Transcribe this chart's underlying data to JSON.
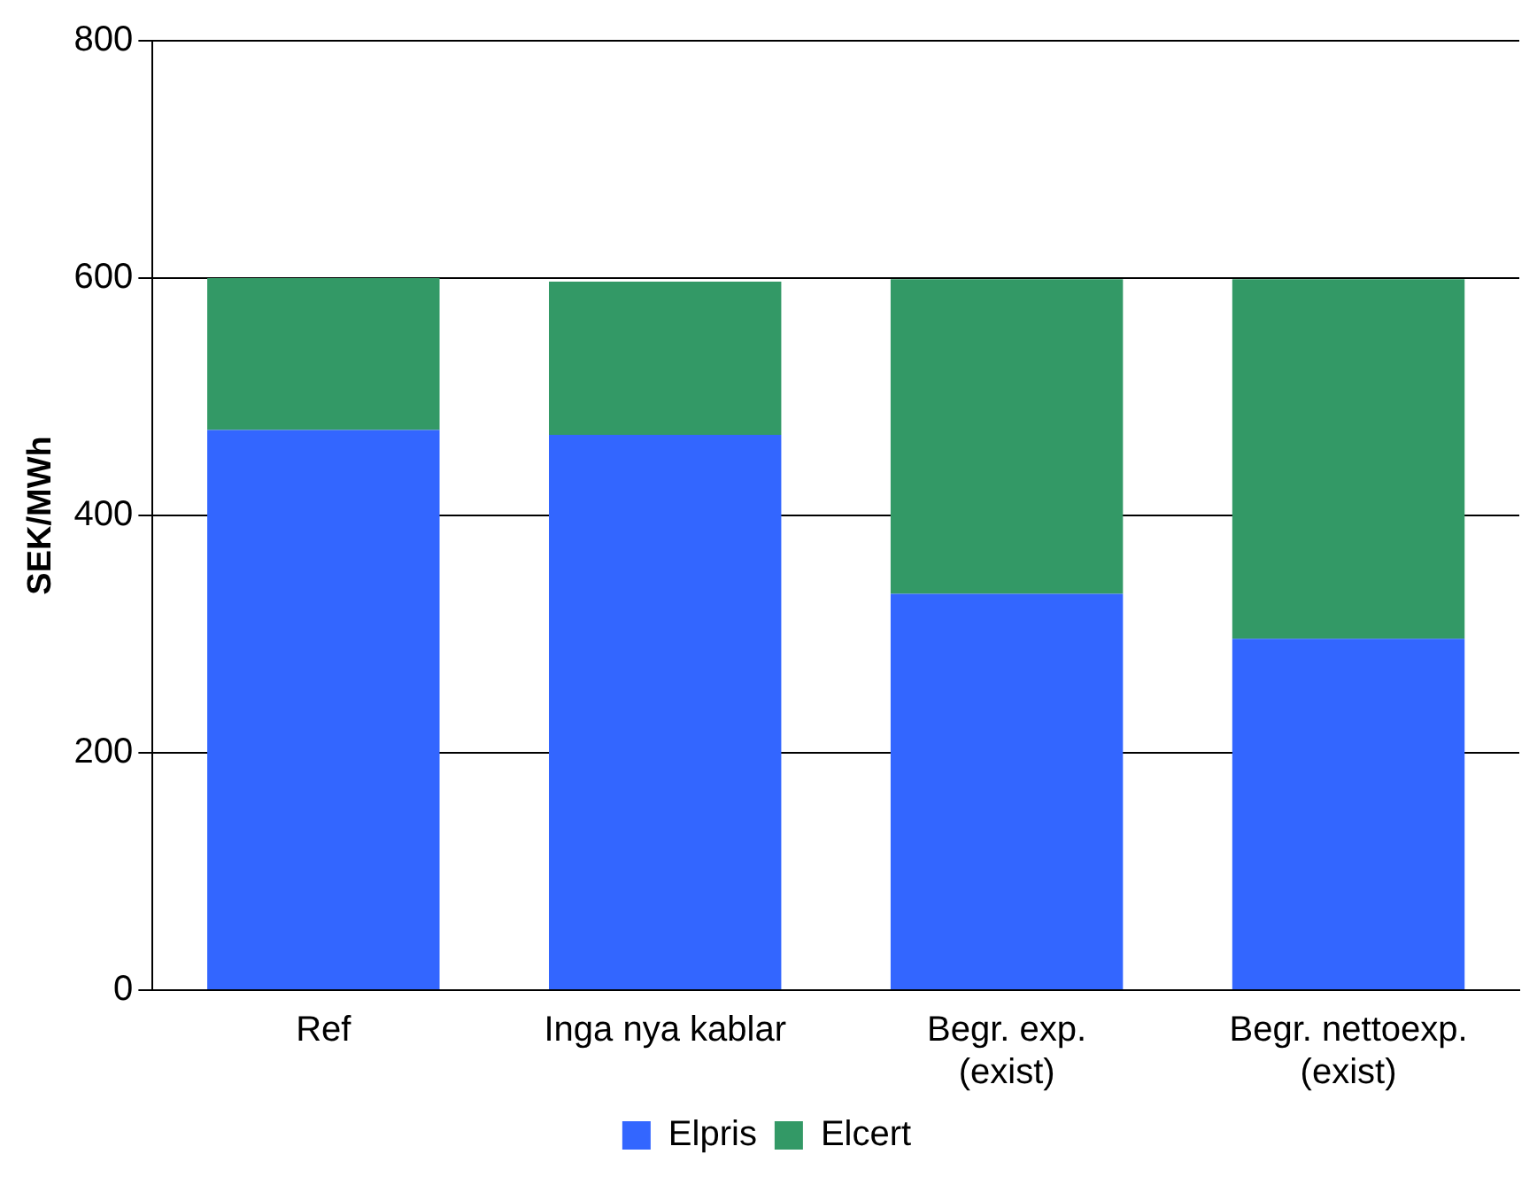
{
  "chart_data": {
    "type": "bar",
    "stacked": true,
    "ylabel": "SEK/MWh",
    "categories": [
      "Ref",
      "Inga nya kablar",
      "Begr. exp. (exist)",
      "Begr. nettoexp. (exist)"
    ],
    "series": [
      {
        "name": "Elpris",
        "color": "#3366ff",
        "values": [
          472,
          468,
          334,
          296
        ]
      },
      {
        "name": "Elcert",
        "color": "#339966",
        "values": [
          128,
          129,
          265,
          303
        ]
      }
    ],
    "ylim": [
      0,
      800
    ],
    "yticks": [
      0,
      200,
      400,
      600,
      800
    ],
    "grid": "y",
    "legend": "bottom"
  }
}
